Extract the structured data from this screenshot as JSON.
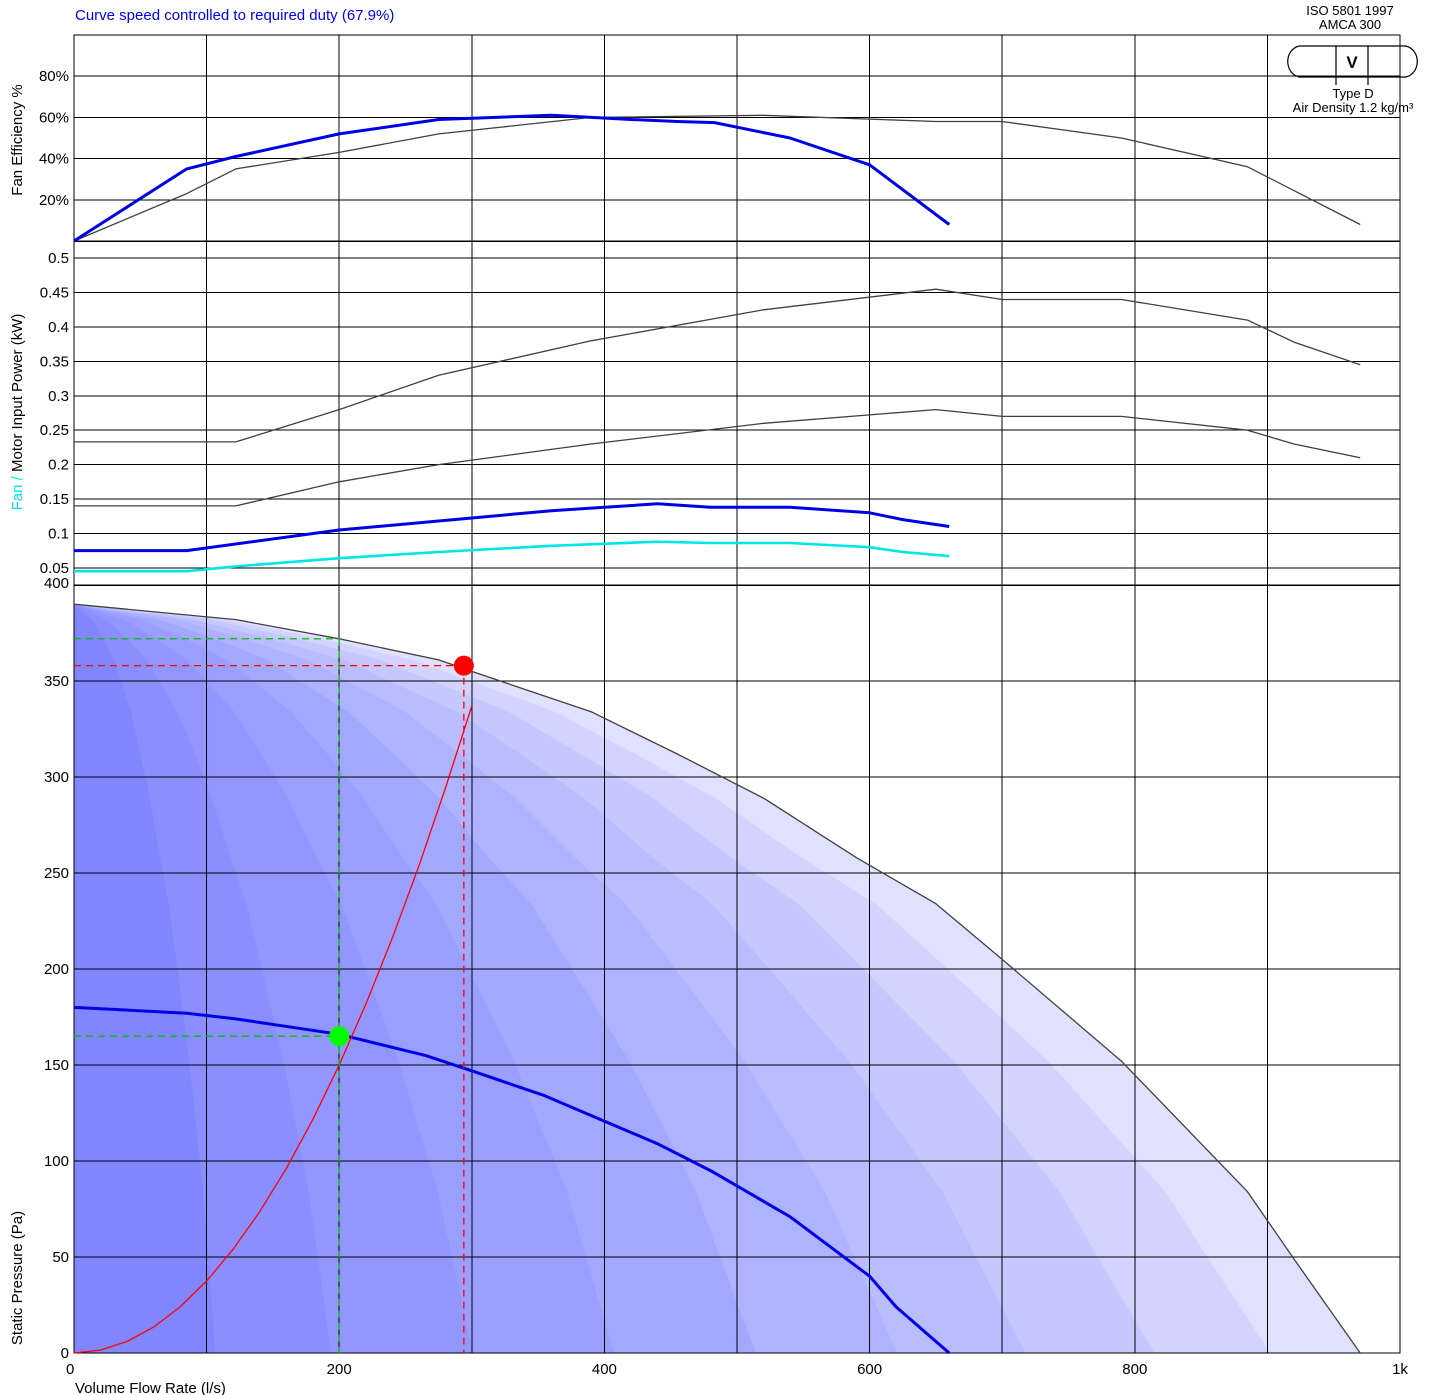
{
  "title": "Curve speed controlled to required duty (67.9%)",
  "badge": {
    "standard_lines": [
      "ISO 5801 1997",
      "AMCA 300"
    ],
    "symbol": "V",
    "type_line": "Type D",
    "density_line": "Air Density 1.2 kg/m³"
  },
  "colors": {
    "title": "#0000ff",
    "operating_curve": "#0000e6",
    "fan_power": "#00e5e5",
    "system_curve": "#ff0000",
    "duty_point": "#ff0000",
    "operating_point": "#00ff00",
    "guide_lines": "#00c000",
    "full_speed_curves": "#404040",
    "grid": "#000000",
    "fill_base": "#e0e0ff",
    "fill_dark": "#7478ff"
  },
  "chart_data": [
    {
      "id": "efficiency",
      "type": "line",
      "ylabel": "Fan Efficiency %",
      "ylim": [
        0,
        100
      ],
      "xlim": [
        0,
        1000
      ],
      "y_ticks": [
        20,
        40,
        60,
        80
      ],
      "y_tick_labels": [
        "20%",
        "40%",
        "60%",
        "80%"
      ],
      "grid": true,
      "series": [
        {
          "role": "full-speed",
          "points": [
            [
              0,
              0
            ],
            [
              85,
              23
            ],
            [
              122,
              35
            ],
            [
              200,
              43
            ],
            [
              275,
              52
            ],
            [
              390,
              60
            ],
            [
              520,
              61
            ],
            [
              650,
              58
            ],
            [
              700,
              58
            ],
            [
              790,
              50
            ],
            [
              885,
              36
            ],
            [
              970,
              8
            ]
          ]
        },
        {
          "role": "controlled",
          "points": [
            [
              0,
              0
            ],
            [
              85,
              35
            ],
            [
              122,
              41
            ],
            [
              200,
              52
            ],
            [
              275,
              59
            ],
            [
              360,
              61
            ],
            [
              420,
              59
            ],
            [
              455,
              58
            ],
            [
              483,
              57.5
            ],
            [
              540,
              50
            ],
            [
              600,
              37
            ],
            [
              660,
              8
            ]
          ]
        }
      ]
    },
    {
      "id": "power",
      "type": "line",
      "ylabel_parts": [
        "Fan",
        " / ",
        "Motor Input Power (kW)"
      ],
      "ylim": [
        0.025,
        0.525
      ],
      "xlim": [
        0,
        1000
      ],
      "y_ticks": [
        0.05,
        0.1,
        0.15,
        0.2,
        0.25,
        0.3,
        0.35,
        0.4,
        0.45,
        0.5
      ],
      "y_tick_labels": [
        "0.05",
        "0.1",
        "0.15",
        "0.2",
        "0.25",
        "0.3",
        "0.35",
        "0.4",
        "0.45",
        "0.5"
      ],
      "grid": true,
      "series": [
        {
          "role": "full-speed-motor",
          "points": [
            [
              0,
              0.233
            ],
            [
              122,
              0.233
            ],
            [
              200,
              0.28
            ],
            [
              275,
              0.33
            ],
            [
              390,
              0.38
            ],
            [
              520,
              0.425
            ],
            [
              650,
              0.455
            ],
            [
              700,
              0.44
            ],
            [
              790,
              0.44
            ],
            [
              885,
              0.41
            ],
            [
              920,
              0.378
            ],
            [
              970,
              0.345
            ]
          ]
        },
        {
          "role": "full-speed-fan",
          "points": [
            [
              0,
              0.14
            ],
            [
              122,
              0.14
            ],
            [
              200,
              0.175
            ],
            [
              275,
              0.2
            ],
            [
              390,
              0.23
            ],
            [
              520,
              0.26
            ],
            [
              650,
              0.28
            ],
            [
              700,
              0.27
            ],
            [
              790,
              0.27
            ],
            [
              885,
              0.25
            ],
            [
              920,
              0.23
            ],
            [
              970,
              0.21
            ]
          ]
        },
        {
          "role": "controlled-motor",
          "points": [
            [
              0,
              0.075
            ],
            [
              85,
              0.075
            ],
            [
              200,
              0.105
            ],
            [
              275,
              0.118
            ],
            [
              360,
              0.133
            ],
            [
              440,
              0.143
            ],
            [
              480,
              0.138
            ],
            [
              540,
              0.138
            ],
            [
              600,
              0.13
            ],
            [
              625,
              0.12
            ],
            [
              660,
              0.11
            ]
          ]
        },
        {
          "role": "controlled-fan",
          "points": [
            [
              0,
              0.045
            ],
            [
              85,
              0.045
            ],
            [
              122,
              0.052
            ],
            [
              200,
              0.064
            ],
            [
              275,
              0.073
            ],
            [
              360,
              0.082
            ],
            [
              440,
              0.088
            ],
            [
              480,
              0.086
            ],
            [
              540,
              0.086
            ],
            [
              600,
              0.08
            ],
            [
              625,
              0.073
            ],
            [
              660,
              0.067
            ]
          ]
        }
      ]
    },
    {
      "id": "pressure",
      "type": "line",
      "xlabel": "Volume Flow Rate (l/s)",
      "ylabel": "Static Pressure (Pa)",
      "xlim": [
        0,
        1000
      ],
      "ylim": [
        0,
        400
      ],
      "x_ticks": [
        0,
        200,
        400,
        600,
        800,
        1000
      ],
      "x_tick_labels": [
        "0",
        "200",
        "400",
        "600",
        "800",
        "1k"
      ],
      "y_ticks": [
        0,
        50,
        100,
        150,
        200,
        250,
        300,
        350,
        400
      ],
      "y_tick_labels": [
        "0",
        "50",
        "100",
        "150",
        "200",
        "250",
        "300",
        "350",
        "400"
      ],
      "grid": true,
      "series": [
        {
          "role": "full-speed",
          "points": [
            [
              0,
              390
            ],
            [
              122,
              382
            ],
            [
              200,
              372
            ],
            [
              275,
              361
            ],
            [
              300,
              355
            ],
            [
              390,
              334
            ],
            [
              455,
              312
            ],
            [
              520,
              289
            ],
            [
              590,
              258
            ],
            [
              650,
              234
            ],
            [
              700,
              205
            ],
            [
              790,
              152
            ],
            [
              885,
              84
            ],
            [
              920,
              49
            ],
            [
              970,
              0
            ]
          ]
        },
        {
          "role": "controlled",
          "points": [
            [
              0,
              180
            ],
            [
              85,
              177
            ],
            [
              122,
              174
            ],
            [
              200,
              166
            ],
            [
              265,
              155
            ],
            [
              300,
              147
            ],
            [
              355,
              134
            ],
            [
              440,
              109
            ],
            [
              480,
              95
            ],
            [
              540,
              71
            ],
            [
              600,
              40
            ],
            [
              620,
              24
            ],
            [
              660,
              0
            ]
          ]
        },
        {
          "role": "system-curve",
          "points": [
            [
              0,
              0
            ],
            [
              20,
              1.5
            ],
            [
              40,
              6
            ],
            [
              60,
              13.5
            ],
            [
              80,
              24
            ],
            [
              100,
              37.5
            ],
            [
              120,
              54
            ],
            [
              140,
              73.5
            ],
            [
              160,
              96
            ],
            [
              180,
              121.5
            ],
            [
              200,
              150
            ],
            [
              220,
              181.5
            ],
            [
              240,
              216
            ],
            [
              260,
              253.5
            ],
            [
              280,
              294
            ],
            [
              294,
              324
            ],
            [
              300,
              337
            ]
          ]
        }
      ],
      "duty_point": {
        "flow": 294,
        "pressure": 358
      },
      "operating_point": {
        "flow": 200,
        "pressure": 165
      },
      "operating_guide_top": 372
    }
  ]
}
